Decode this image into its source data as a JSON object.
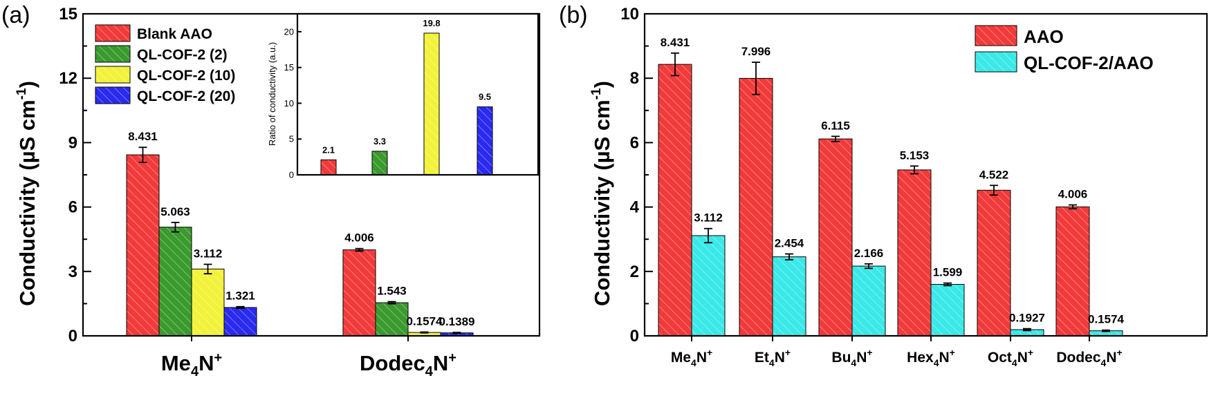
{
  "colors": {
    "red": "#f23a3a",
    "green": "#3a9a2e",
    "yellow": "#f2f23a",
    "blue": "#2a2af0",
    "cyan": "#3ae8e8"
  },
  "chart_data": [
    {
      "panel": "(a)",
      "type": "bar",
      "ylabel_main": "Conductivity (µS cm",
      "ylabel_sup": "-1",
      "ylabel_tail": ")",
      "ylim": [
        0,
        15
      ],
      "yticks": [
        0,
        3,
        6,
        9,
        12,
        15
      ],
      "categories": [
        {
          "main": "Me",
          "sub": "4",
          "tail": "N",
          "sup": "+"
        },
        {
          "main": "Dodec",
          "sub": "4",
          "tail": "N",
          "sup": "+"
        }
      ],
      "legend_placement": "top-left",
      "series": [
        {
          "name": "Blank AAO",
          "color_key": "red",
          "values": [
            8.431,
            4.006
          ],
          "labels": [
            "8.431",
            "4.006"
          ],
          "errors": [
            0.35,
            0.06
          ]
        },
        {
          "name": "QL-COF-2 (2)",
          "color_key": "green",
          "values": [
            5.063,
            1.543
          ],
          "labels": [
            "5.063",
            "1.543"
          ],
          "errors": [
            0.22,
            0.05
          ]
        },
        {
          "name": "QL-COF-2 (10)",
          "color_key": "yellow",
          "values": [
            3.112,
            0.1574
          ],
          "labels": [
            "3.112",
            "0.1574"
          ],
          "errors": [
            0.22,
            0.02
          ]
        },
        {
          "name": "QL-COF-2 (20)",
          "color_key": "blue",
          "values": [
            1.321,
            0.1389
          ],
          "labels": [
            "1.321",
            "0.1389"
          ],
          "errors": [
            0.04,
            0.02
          ]
        }
      ],
      "inset": {
        "type": "bar",
        "ylabel": "Ratio of conductivity (a.u.)",
        "ylim": [
          0,
          22.5
        ],
        "yticks": [
          0,
          5,
          10,
          15,
          20
        ],
        "bars": [
          {
            "value": 2.1,
            "label": "2.1",
            "color_key": "red"
          },
          {
            "value": 3.3,
            "label": "3.3",
            "color_key": "green"
          },
          {
            "value": 19.8,
            "label": "19.8",
            "color_key": "yellow"
          },
          {
            "value": 9.5,
            "label": "9.5",
            "color_key": "blue"
          }
        ]
      }
    },
    {
      "panel": "(b)",
      "type": "bar",
      "ylabel_main": "Conductivity (µS cm",
      "ylabel_sup": "-1",
      "ylabel_tail": ")",
      "ylim": [
        0,
        10
      ],
      "yticks": [
        0,
        2,
        4,
        6,
        8,
        10
      ],
      "categories": [
        {
          "main": "Me",
          "sub": "4",
          "tail": "N",
          "sup": "+"
        },
        {
          "main": "Et",
          "sub": "4",
          "tail": "N",
          "sup": "+"
        },
        {
          "main": "Bu",
          "sub": "4",
          "tail": "N",
          "sup": "+"
        },
        {
          "main": "Hex",
          "sub": "4",
          "tail": "N",
          "sup": "+"
        },
        {
          "main": "Oct",
          "sub": "4",
          "tail": "N",
          "sup": "+"
        },
        {
          "main": "Dodec",
          "sub": "4",
          "tail": "N",
          "sup": "+"
        }
      ],
      "legend_placement": "top-right",
      "series": [
        {
          "name": "AAO",
          "color_key": "red",
          "values": [
            8.431,
            7.996,
            6.115,
            5.153,
            4.522,
            4.006
          ],
          "labels": [
            "8.431",
            "7.996",
            "6.115",
            "5.153",
            "4.522",
            "4.006"
          ],
          "errors": [
            0.35,
            0.5,
            0.08,
            0.12,
            0.15,
            0.06
          ]
        },
        {
          "name": "QL-COF-2/AAO",
          "color_key": "cyan",
          "values": [
            3.112,
            2.454,
            2.166,
            1.599,
            0.1927,
            0.1574
          ],
          "labels": [
            "3.112",
            "2.454",
            "2.166",
            "1.599",
            "0.1927",
            "0.1574"
          ],
          "errors": [
            0.22,
            0.09,
            0.07,
            0.04,
            0.03,
            0.02
          ]
        }
      ]
    }
  ]
}
